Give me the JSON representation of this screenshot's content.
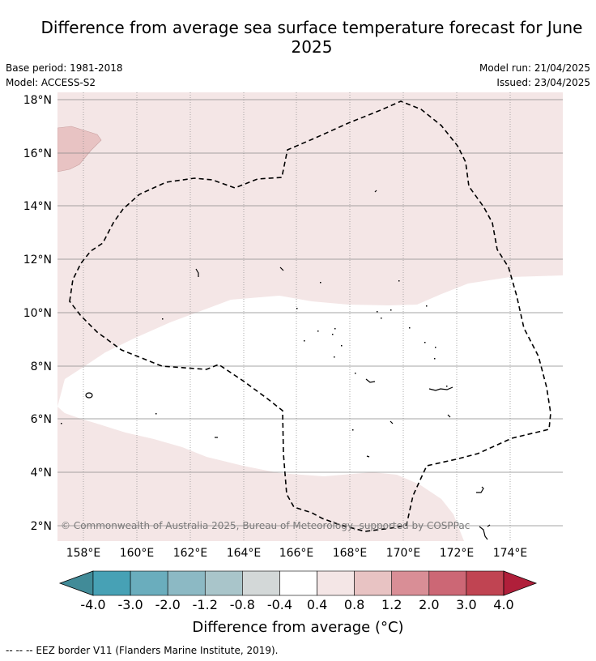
{
  "title": "Difference from average sea surface temperature forecast for June 2025",
  "meta": {
    "base_period": "Base period: 1981-2018",
    "model": "Model: ACCESS-S2",
    "model_run": "Model run: 21/04/2025",
    "issued": "Issued: 23/04/2025"
  },
  "map": {
    "lat_labels": [
      "18°N",
      "16°N",
      "14°N",
      "12°N",
      "10°N",
      "8°N",
      "6°N",
      "4°N",
      "2°N"
    ],
    "lon_labels": [
      "158°E",
      "160°E",
      "162°E",
      "164°E",
      "166°E",
      "168°E",
      "170°E",
      "172°E",
      "174°E"
    ],
    "credit": "© Commonwealth of Australia 2025, Bureau of Meteorology, supported by COSPPac",
    "colors": {
      "anomaly_0_4_to_0_8": "#f4e6e6",
      "anomaly_0_8_to_1_2": "#e8c3c3",
      "neutral": "#ffffff",
      "gridline": "#888888",
      "eez_border": "#000000"
    }
  },
  "colorbar": {
    "title": "Difference from average (°C)",
    "ticks": [
      "-4.0",
      "-3.0",
      "-2.0",
      "-1.2",
      "-0.8",
      "-0.4",
      "0.4",
      "0.8",
      "1.2",
      "2.0",
      "3.0",
      "4.0"
    ],
    "colors": [
      "#418b98",
      "#47a1b5",
      "#6aadbd",
      "#8cb9c4",
      "#a9c5ca",
      "#d3d8d8",
      "#ffffff",
      "#f4e6e6",
      "#e8c3c3",
      "#d98e96",
      "#cc6775",
      "#c04452",
      "#b01f3a"
    ]
  },
  "footnote": "--  --  -- EEZ border V11 (Flanders Marine Institute, 2019)."
}
